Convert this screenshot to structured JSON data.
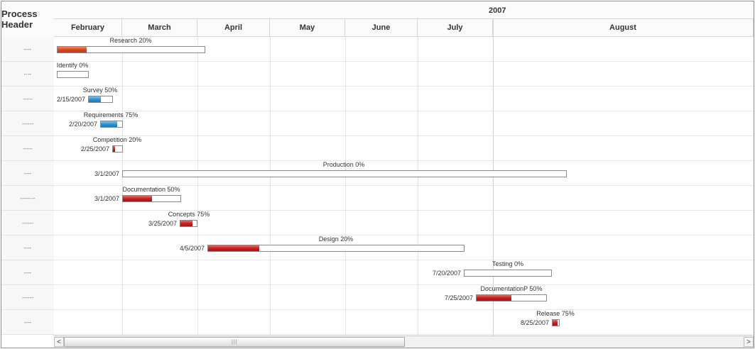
{
  "gantt": {
    "process_header": "Process Header",
    "year": "2007",
    "months": [
      "February",
      "March",
      "April",
      "May",
      "June",
      "July",
      "August"
    ],
    "rows": [
      {
        "label": "----",
        "task": "Research 20%",
        "date": "",
        "percent": 20,
        "color": "orange"
      },
      {
        "label": "-·--",
        "task": "Identify 0%",
        "date": "",
        "percent": 0,
        "color": "orange"
      },
      {
        "label": "-----",
        "task": "Survey 50%",
        "date": "2/15/2007",
        "percent": 50,
        "color": "blue"
      },
      {
        "label": "------",
        "task": "Requirements 75%",
        "date": "2/20/2007",
        "percent": 75,
        "color": "blue"
      },
      {
        "label": "-----",
        "task": "Competition 20%",
        "date": "2/25/2007",
        "percent": 20,
        "color": "red"
      },
      {
        "label": "----",
        "task": "Production 0%",
        "date": "3/1/2007",
        "percent": 0,
        "color": "red"
      },
      {
        "label": "-----·--",
        "task": "Documentation 50%",
        "date": "3/1/2007",
        "percent": 50,
        "color": "red"
      },
      {
        "label": "------",
        "task": "Concepts 75%",
        "date": "3/25/2007",
        "percent": 75,
        "color": "red"
      },
      {
        "label": "----",
        "task": "Design 20%",
        "date": "4/5/2007",
        "percent": 20,
        "color": "red"
      },
      {
        "label": "----",
        "task": "Testing 0%",
        "date": "7/20/2007",
        "percent": 0,
        "color": "red"
      },
      {
        "label": "------",
        "task": "DocumentationP 50%",
        "date": "7/25/2007",
        "percent": 50,
        "color": "red"
      },
      {
        "label": "----",
        "task": "Release 75%",
        "date": "8/25/2007",
        "percent": 75,
        "color": "red"
      }
    ]
  },
  "scrollbar": {
    "left_arrow": "<",
    "right_arrow": ">",
    "grip": "|||"
  },
  "colors": {
    "orange": "#d7431b",
    "blue": "#2d8fd0",
    "red": "#c01d1d"
  }
}
